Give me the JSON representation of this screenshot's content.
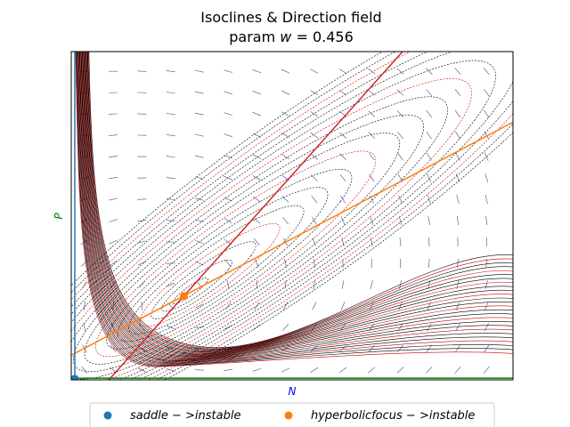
{
  "chart_data": {
    "type": "scatter",
    "title": "Isoclines & Direction field",
    "subtitle_prefix": "param ",
    "subtitle_var": "w",
    "subtitle_suffix": " = 0.456",
    "xlabel": "N",
    "ylabel": "P",
    "xlim": [
      0,
      100
    ],
    "ylim": [
      0,
      100
    ],
    "xlabel_color": "#0000ff",
    "ylabel_color": "#008000",
    "isoclines": [
      {
        "color": "#d62728",
        "x": [
          8.5,
          75
        ],
        "y": [
          0,
          100
        ]
      },
      {
        "color": "#ff7f0e",
        "x": [
          0,
          100
        ],
        "y": [
          7.5,
          78.5
        ]
      },
      {
        "color": "#1f77b4",
        "x": [
          0.8,
          0.8
        ],
        "y": [
          0,
          100
        ]
      },
      {
        "color": "#008000",
        "x": [
          0,
          100
        ],
        "y": [
          0.5,
          0.5
        ]
      }
    ],
    "equilibria": [
      {
        "name": "saddle->instable",
        "label_lhs": "saddle",
        "label_rhs": "instable",
        "x": 0.8,
        "y": 0.3,
        "color": "#1f77b4"
      },
      {
        "name": "hyperbolicfocus->instable",
        "label_lhs": "hyperbolicfocus",
        "label_rhs": "instable",
        "x": 25.5,
        "y": 25.5,
        "color": "#ff7f0e"
      }
    ],
    "legend": {
      "placement": "lower-center"
    },
    "colors": {
      "trajectory": "#000000",
      "trajectory_alt": "#cc0000",
      "field": "#1a1a80"
    }
  }
}
